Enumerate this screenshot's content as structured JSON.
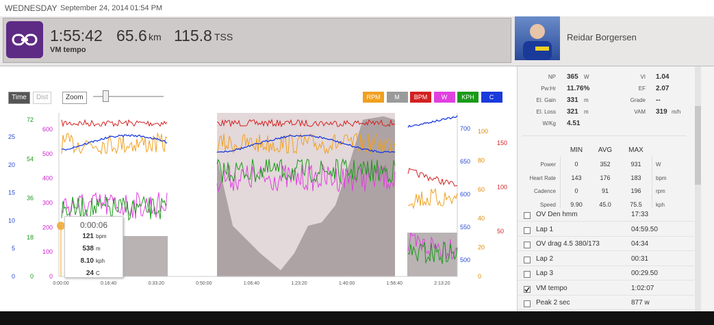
{
  "topbar": {
    "weekday": "WEDNESDAY",
    "date": "September 24, 2014",
    "time": "01:54 PM"
  },
  "header": {
    "duration": "1:55:42",
    "distance": "65.6",
    "distance_unit": "km",
    "tss": "115.8",
    "tss_unit": "TSS",
    "workout": "VM tempo",
    "athlete": "Reidar Borgersen"
  },
  "controls": {
    "time": "Time",
    "dist": "Dist",
    "zoom": "Zoom"
  },
  "legend": [
    {
      "label": "RPM",
      "color": "#f0a020"
    },
    {
      "label": "M",
      "color": "#9a9a9a"
    },
    {
      "label": "BPM",
      "color": "#d42020"
    },
    {
      "label": "W",
      "color": "#e040e0"
    },
    {
      "label": "KPH",
      "color": "#1a9a1a"
    },
    {
      "label": "C",
      "color": "#1a3adc"
    }
  ],
  "axes": {
    "left_c": {
      "color": "#2a4ad0",
      "ticks": [
        0,
        5,
        10,
        15,
        20,
        25
      ]
    },
    "left_kph": {
      "color": "#1a9a1a",
      "ticks": [
        0,
        18,
        36,
        54,
        72
      ]
    },
    "left_w": {
      "color": "#d020d0",
      "ticks": [
        0,
        100,
        200,
        300,
        400,
        500,
        600
      ]
    },
    "right_m": {
      "color": "#2a4ad0",
      "ticks": [
        500,
        550,
        600,
        650,
        700
      ]
    },
    "right_rpm": {
      "color": "#e08a00",
      "ticks": [
        0,
        20,
        40,
        60,
        80,
        100
      ]
    },
    "right_bpm": {
      "color": "#d42020",
      "ticks": [
        50,
        100,
        150
      ]
    },
    "x": [
      "0:00:00",
      "0:16:40",
      "0:33:20",
      "0:50:00",
      "1:06:40",
      "1:23:20",
      "1:40:00",
      "1:56:40",
      "2:13:20"
    ]
  },
  "tooltip": {
    "time": "0:00:06",
    "rows": [
      {
        "value": "121",
        "unit": "bpm"
      },
      {
        "value": "538",
        "unit": "m"
      },
      {
        "value": "8.10",
        "unit": "kph"
      },
      {
        "value": "24",
        "unit": "C"
      }
    ]
  },
  "summary": {
    "left": [
      {
        "label": "NP",
        "value": "365",
        "unit": "W"
      },
      {
        "label": "Pw:Hr",
        "value": "11.76%",
        "unit": ""
      },
      {
        "label": "El. Gain",
        "value": "331",
        "unit": "m"
      },
      {
        "label": "El. Loss",
        "value": "321",
        "unit": "m"
      },
      {
        "label": "W/Kg",
        "value": "4.51",
        "unit": ""
      }
    ],
    "right": [
      {
        "label": "VI",
        "value": "1.04",
        "unit": ""
      },
      {
        "label": "EF",
        "value": "2.07",
        "unit": ""
      },
      {
        "label": "Grade",
        "value": "--",
        "unit": ""
      },
      {
        "label": "VAM",
        "value": "319",
        "unit": "m/h"
      }
    ]
  },
  "stats": {
    "columns": [
      "MIN",
      "AVG",
      "MAX"
    ],
    "rows": [
      {
        "label": "Power",
        "min": "0",
        "avg": "352",
        "max": "931",
        "unit": "W"
      },
      {
        "label": "Heart Rate",
        "min": "143",
        "avg": "176",
        "max": "183",
        "unit": "bpm"
      },
      {
        "label": "Cadence",
        "min": "0",
        "avg": "91",
        "max": "196",
        "unit": "rpm"
      },
      {
        "label": "Speed",
        "min": "9.90",
        "avg": "45.0",
        "max": "75.5",
        "unit": "kph"
      }
    ]
  },
  "laps": [
    {
      "name": "OV Den hmm",
      "value": "17:33",
      "checked": false
    },
    {
      "name": "Lap 1",
      "value": "04:59.50",
      "checked": false
    },
    {
      "name": "OV drag 4.5 380/173",
      "value": "04:34",
      "checked": false
    },
    {
      "name": "Lap 2",
      "value": "00:31",
      "checked": false
    },
    {
      "name": "Lap 3",
      "value": "00:29.50",
      "checked": false
    },
    {
      "name": "VM tempo",
      "value": "1:02:07",
      "checked": true
    },
    {
      "name": "Peak 2 sec",
      "value": "877 w",
      "checked": false
    }
  ]
}
